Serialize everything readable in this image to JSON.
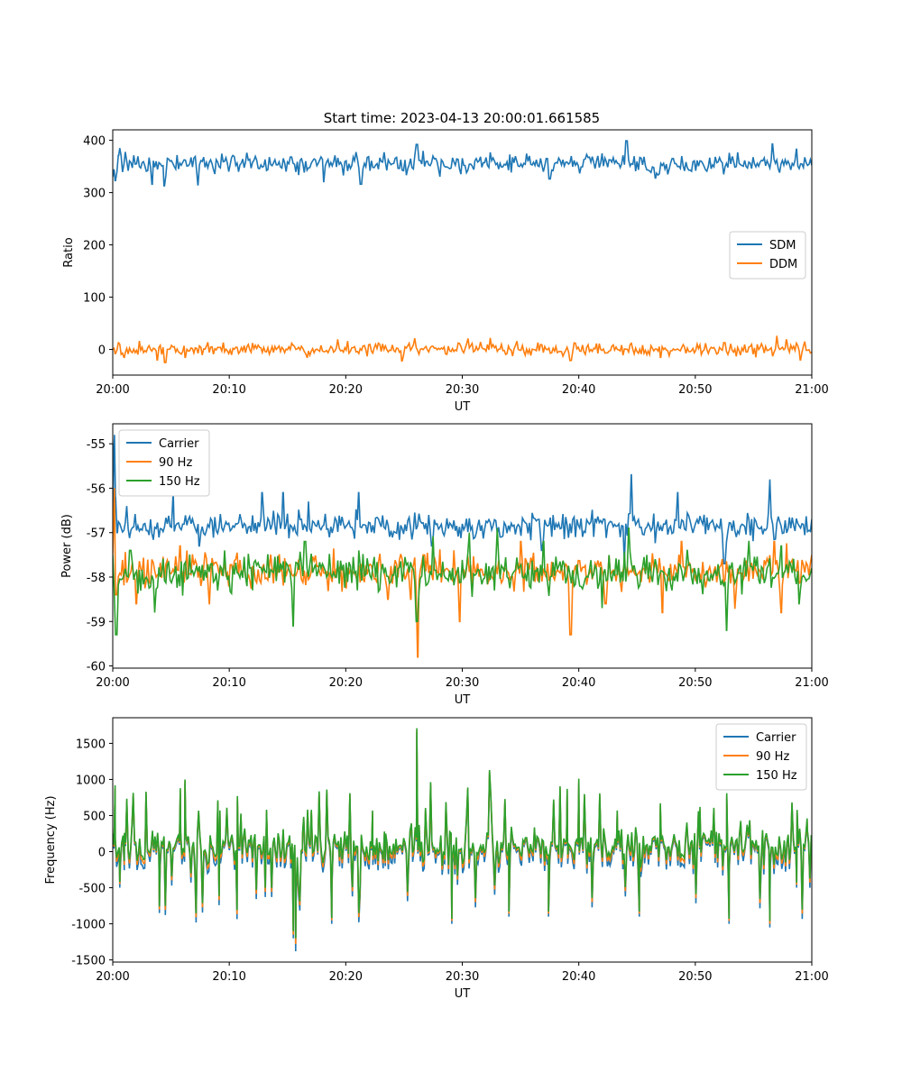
{
  "figure": {
    "title": "Start time: 2023-04-13 20:00:01.661585"
  },
  "chart_data": [
    {
      "type": "line",
      "title": "Start time: 2023-04-13 20:00:01.661585",
      "xlabel": "UT",
      "ylabel": "Ratio",
      "xlim": [
        "20:00",
        "21:00"
      ],
      "xticks": [
        "20:00",
        "20:10",
        "20:20",
        "20:30",
        "20:40",
        "20:50",
        "21:00"
      ],
      "ylim": [
        -49,
        420
      ],
      "yticks": [
        0,
        100,
        200,
        300,
        400
      ],
      "legend": "center-right",
      "grid": false,
      "series": [
        {
          "name": "SDM",
          "color": "#1f77b4",
          "mean": 355,
          "amplitude": 15,
          "values": [
            [
              0.0,
              330
            ],
            [
              0.2,
              323
            ],
            [
              0.5,
              370
            ],
            [
              0.6,
              385
            ],
            [
              3.4,
              316
            ],
            [
              4.4,
              313
            ],
            [
              7.3,
              315
            ],
            [
              10.3,
              371
            ],
            [
              11.5,
              375
            ],
            [
              15.3,
              368
            ],
            [
              16.2,
              365
            ],
            [
              18.1,
              321
            ],
            [
              21.3,
              316
            ],
            [
              23.3,
              376
            ],
            [
              26.1,
              392
            ],
            [
              31.0,
              345
            ],
            [
              32.4,
              377
            ],
            [
              37.5,
              326
            ],
            [
              42.0,
              375
            ],
            [
              44.1,
              399
            ],
            [
              46.6,
              328
            ],
            [
              49.5,
              343
            ],
            [
              53.2,
              368
            ],
            [
              56.6,
              393
            ],
            [
              58.7,
              383
            ],
            [
              60.0,
              352
            ]
          ]
        },
        {
          "name": "DDM",
          "color": "#ff7f0e",
          "mean": 0,
          "amplitude": 10,
          "values": [
            [
              0.0,
              0
            ],
            [
              0.2,
              -8
            ],
            [
              0.5,
              13
            ],
            [
              1.0,
              -15
            ],
            [
              3.8,
              -20
            ],
            [
              4.5,
              -25
            ],
            [
              6.2,
              -15
            ],
            [
              9.5,
              12
            ],
            [
              15.5,
              8
            ],
            [
              16.7,
              -15
            ],
            [
              19.3,
              18
            ],
            [
              22.8,
              12
            ],
            [
              24.8,
              -22
            ],
            [
              30.5,
              20
            ],
            [
              32.4,
              22
            ],
            [
              34.7,
              15
            ],
            [
              36.5,
              12
            ],
            [
              39.3,
              -21
            ],
            [
              44.5,
              12
            ],
            [
              47.0,
              -15
            ],
            [
              52.5,
              13
            ],
            [
              55.2,
              -15
            ],
            [
              57.0,
              25
            ],
            [
              57.8,
              18
            ],
            [
              59.0,
              -20
            ],
            [
              60.0,
              -5
            ]
          ]
        }
      ]
    },
    {
      "type": "line",
      "title": "",
      "xlabel": "UT",
      "ylabel": "Power (dB)",
      "xlim": [
        "20:00",
        "21:00"
      ],
      "xticks": [
        "20:00",
        "20:10",
        "20:20",
        "20:30",
        "20:40",
        "20:50",
        "21:00"
      ],
      "ylim": [
        -60.05,
        -54.55
      ],
      "yticks": [
        -60,
        -59,
        -58,
        -57,
        -56,
        -55
      ],
      "legend": "top-left",
      "grid": false,
      "series": [
        {
          "name": "Carrier",
          "color": "#1f77b4",
          "mean": -56.85,
          "amplitude": 0.25,
          "values": [
            [
              0.0,
              -57.2
            ],
            [
              0.1,
              -55.0
            ],
            [
              0.15,
              -54.8
            ],
            [
              0.25,
              -56.2
            ],
            [
              0.4,
              -57.0
            ],
            [
              0.6,
              -56.8
            ],
            [
              1.2,
              -56.4
            ],
            [
              5.2,
              -56.2
            ],
            [
              7.4,
              -57.3
            ],
            [
              12.8,
              -56.1
            ],
            [
              14.6,
              -56.1
            ],
            [
              16.8,
              -56.3
            ],
            [
              21.1,
              -56.1
            ],
            [
              27.4,
              -57.3
            ],
            [
              33.3,
              -57.1
            ],
            [
              36.8,
              -57.4
            ],
            [
              43.9,
              -57.6
            ],
            [
              44.5,
              -55.7
            ],
            [
              48.5,
              -56.1
            ],
            [
              52.5,
              -57.7
            ],
            [
              56.4,
              -55.8
            ],
            [
              60.0,
              -56.7
            ]
          ]
        },
        {
          "name": "90 Hz",
          "color": "#ff7f0e",
          "mean": -57.85,
          "amplitude": 0.3,
          "values": [
            [
              0.0,
              -57.5
            ],
            [
              0.15,
              -56.0
            ],
            [
              0.3,
              -58.4
            ],
            [
              2.0,
              -58.6
            ],
            [
              5.8,
              -57.3
            ],
            [
              8.3,
              -58.6
            ],
            [
              14.3,
              -57.5
            ],
            [
              18.5,
              -58.3
            ],
            [
              23.6,
              -58.5
            ],
            [
              25.6,
              -58.5
            ],
            [
              26.2,
              -59.8
            ],
            [
              26.7,
              -57.5
            ],
            [
              29.8,
              -59.0
            ],
            [
              35.0,
              -57.2
            ],
            [
              39.3,
              -59.3
            ],
            [
              42.3,
              -58.6
            ],
            [
              47.2,
              -58.8
            ],
            [
              48.8,
              -57.2
            ],
            [
              53.4,
              -58.7
            ],
            [
              56.8,
              -57.2
            ],
            [
              57.4,
              -58.8
            ],
            [
              60.0,
              -57.5
            ]
          ]
        },
        {
          "name": "150 Hz",
          "color": "#2ca02c",
          "mean": -57.9,
          "amplitude": 0.35,
          "values": [
            [
              0.0,
              -57.5
            ],
            [
              0.3,
              -59.3
            ],
            [
              1.5,
              -57.4
            ],
            [
              3.6,
              -58.8
            ],
            [
              9.6,
              -57.4
            ],
            [
              13.3,
              -57.5
            ],
            [
              15.5,
              -59.1
            ],
            [
              16.5,
              -57.2
            ],
            [
              23.4,
              -57.8
            ],
            [
              26.1,
              -59.0
            ],
            [
              27.5,
              -57.1
            ],
            [
              30.6,
              -57.0
            ],
            [
              33.0,
              -56.9
            ],
            [
              37.0,
              -57.2
            ],
            [
              42.0,
              -58.7
            ],
            [
              44.3,
              -56.9
            ],
            [
              48.0,
              -58.3
            ],
            [
              49.3,
              -57.4
            ],
            [
              52.7,
              -59.2
            ],
            [
              54.6,
              -57.2
            ],
            [
              57.4,
              -57.3
            ],
            [
              58.9,
              -58.6
            ],
            [
              60.0,
              -57.8
            ]
          ]
        }
      ]
    },
    {
      "type": "line",
      "title": "",
      "xlabel": "UT",
      "ylabel": "Frequency (Hz)",
      "xlim": [
        "20:00",
        "21:00"
      ],
      "xticks": [
        "20:00",
        "20:10",
        "20:20",
        "20:30",
        "20:40",
        "20:50",
        "21:00"
      ],
      "ylim": [
        -1530,
        1855
      ],
      "yticks": [
        -1500,
        -1000,
        -500,
        0,
        500,
        1000,
        1500
      ],
      "legend": "top-right",
      "grid": false,
      "series": [
        {
          "name": "Carrier",
          "color": "#1f77b4",
          "offset": -80,
          "values": [
            [
              0.0,
              150
            ],
            [
              0.2,
              850
            ],
            [
              0.6,
              -500
            ],
            [
              1.0,
              200
            ],
            [
              2.8,
              250
            ],
            [
              4.0,
              -850
            ],
            [
              5.8,
              800
            ],
            [
              6.2,
              950
            ],
            [
              9.2,
              500
            ],
            [
              10.7,
              700
            ],
            [
              15.5,
              -1200
            ],
            [
              15.7,
              -1380
            ],
            [
              16.3,
              200
            ],
            [
              18.8,
              -1000
            ],
            [
              22.3,
              500
            ],
            [
              23.4,
              -200
            ],
            [
              26.1,
              1650
            ],
            [
              26.3,
              300
            ],
            [
              29.1,
              -1000
            ],
            [
              34.0,
              -900
            ],
            [
              37.4,
              -900
            ],
            [
              39.0,
              800
            ],
            [
              40.0,
              950
            ],
            [
              43.3,
              500
            ],
            [
              45.2,
              -900
            ],
            [
              47.0,
              600
            ],
            [
              50.4,
              550
            ],
            [
              52.7,
              750
            ],
            [
              52.9,
              -1000
            ],
            [
              56.4,
              -1050
            ],
            [
              58.7,
              -500
            ],
            [
              59.6,
              400
            ],
            [
              60.0,
              -150
            ]
          ]
        },
        {
          "name": "90 Hz",
          "color": "#ff7f0e",
          "offset": -35,
          "values": [
            [
              0.0,
              200
            ],
            [
              0.2,
              880
            ],
            [
              0.6,
              -450
            ],
            [
              1.0,
              230
            ],
            [
              2.8,
              280
            ],
            [
              4.0,
              -800
            ],
            [
              5.8,
              850
            ],
            [
              6.2,
              980
            ],
            [
              9.2,
              540
            ],
            [
              10.7,
              740
            ],
            [
              15.5,
              -1150
            ],
            [
              15.7,
              -1280
            ],
            [
              16.3,
              240
            ],
            [
              18.8,
              -950
            ],
            [
              22.3,
              540
            ],
            [
              23.4,
              -160
            ],
            [
              26.1,
              1680
            ],
            [
              26.3,
              340
            ],
            [
              29.1,
              -960
            ],
            [
              34.0,
              -860
            ],
            [
              37.4,
              -860
            ],
            [
              39.0,
              840
            ],
            [
              40.0,
              980
            ],
            [
              43.3,
              540
            ],
            [
              45.2,
              -860
            ],
            [
              47.0,
              640
            ],
            [
              50.4,
              590
            ],
            [
              52.7,
              780
            ],
            [
              52.9,
              -960
            ],
            [
              56.4,
              -1000
            ],
            [
              58.7,
              -460
            ],
            [
              59.6,
              430
            ],
            [
              60.0,
              -100
            ]
          ]
        },
        {
          "name": "150 Hz",
          "color": "#2ca02c",
          "offset": 0,
          "values": [
            [
              0.0,
              250
            ],
            [
              0.2,
              920
            ],
            [
              0.6,
              -420
            ],
            [
              1.0,
              260
            ],
            [
              2.8,
              310
            ],
            [
              4.0,
              -760
            ],
            [
              5.8,
              880
            ],
            [
              6.2,
              1000
            ],
            [
              9.2,
              570
            ],
            [
              10.7,
              770
            ],
            [
              15.5,
              -1100
            ],
            [
              15.7,
              -1200
            ],
            [
              16.3,
              270
            ],
            [
              18.8,
              -920
            ],
            [
              22.3,
              570
            ],
            [
              23.4,
              -130
            ],
            [
              26.1,
              1710
            ],
            [
              26.3,
              370
            ],
            [
              29.1,
              -930
            ],
            [
              34.0,
              -830
            ],
            [
              37.4,
              -830
            ],
            [
              39.0,
              870
            ],
            [
              40.0,
              1010
            ],
            [
              43.3,
              570
            ],
            [
              45.2,
              -830
            ],
            [
              47.0,
              670
            ],
            [
              50.4,
              620
            ],
            [
              52.7,
              810
            ],
            [
              52.9,
              -930
            ],
            [
              56.4,
              -960
            ],
            [
              58.7,
              -430
            ],
            [
              59.6,
              460
            ],
            [
              60.0,
              -50
            ]
          ]
        }
      ]
    }
  ]
}
